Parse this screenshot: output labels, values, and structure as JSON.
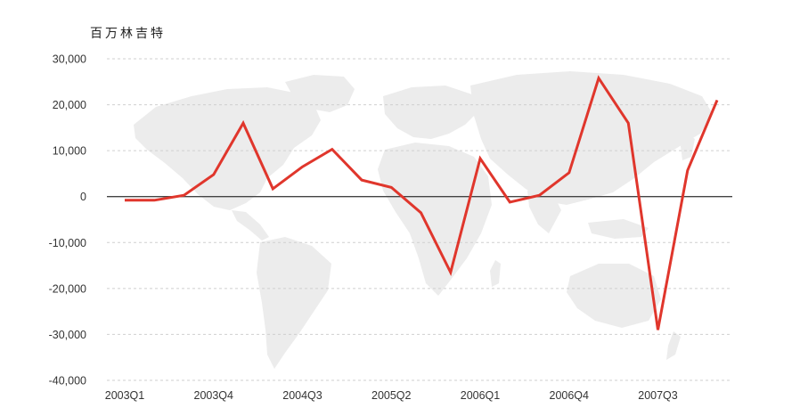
{
  "chart_data": {
    "type": "line",
    "ylabel": "百万林吉特",
    "ylim": [
      -40000,
      30000
    ],
    "yticks": [
      30000,
      20000,
      10000,
      0,
      -10000,
      -20000,
      -30000,
      -40000
    ],
    "ytick_labels": [
      "30,000",
      "20,000",
      "10,000",
      "0",
      "-10,000",
      "-20,000",
      "-30,000",
      "-40,000"
    ],
    "xtick_labels": [
      "2003Q1",
      "2003Q4",
      "2004Q3",
      "2005Q2",
      "2006Q1",
      "2006Q4",
      "2007Q3"
    ],
    "xtick_indices": [
      0,
      3,
      6,
      9,
      12,
      15,
      18
    ],
    "grid": true,
    "background": "world-map",
    "x": [
      "2003Q1",
      "2003Q2",
      "2003Q3",
      "2003Q4",
      "2004Q1",
      "2004Q2",
      "2004Q3",
      "2004Q4",
      "2005Q1",
      "2005Q2",
      "2005Q3",
      "2005Q4",
      "2006Q1",
      "2006Q2",
      "2006Q3",
      "2006Q4",
      "2007Q1",
      "2007Q2",
      "2007Q3",
      "2007Q4",
      "2008Q1"
    ],
    "series": [
      {
        "color": "#e0362c",
        "values": [
          -800,
          -800,
          300,
          4800,
          16000,
          1700,
          6500,
          10300,
          3600,
          2000,
          -3500,
          -16500,
          8300,
          -1200,
          300,
          5200,
          25800,
          16000,
          -29000,
          5700,
          21000
        ]
      }
    ]
  }
}
